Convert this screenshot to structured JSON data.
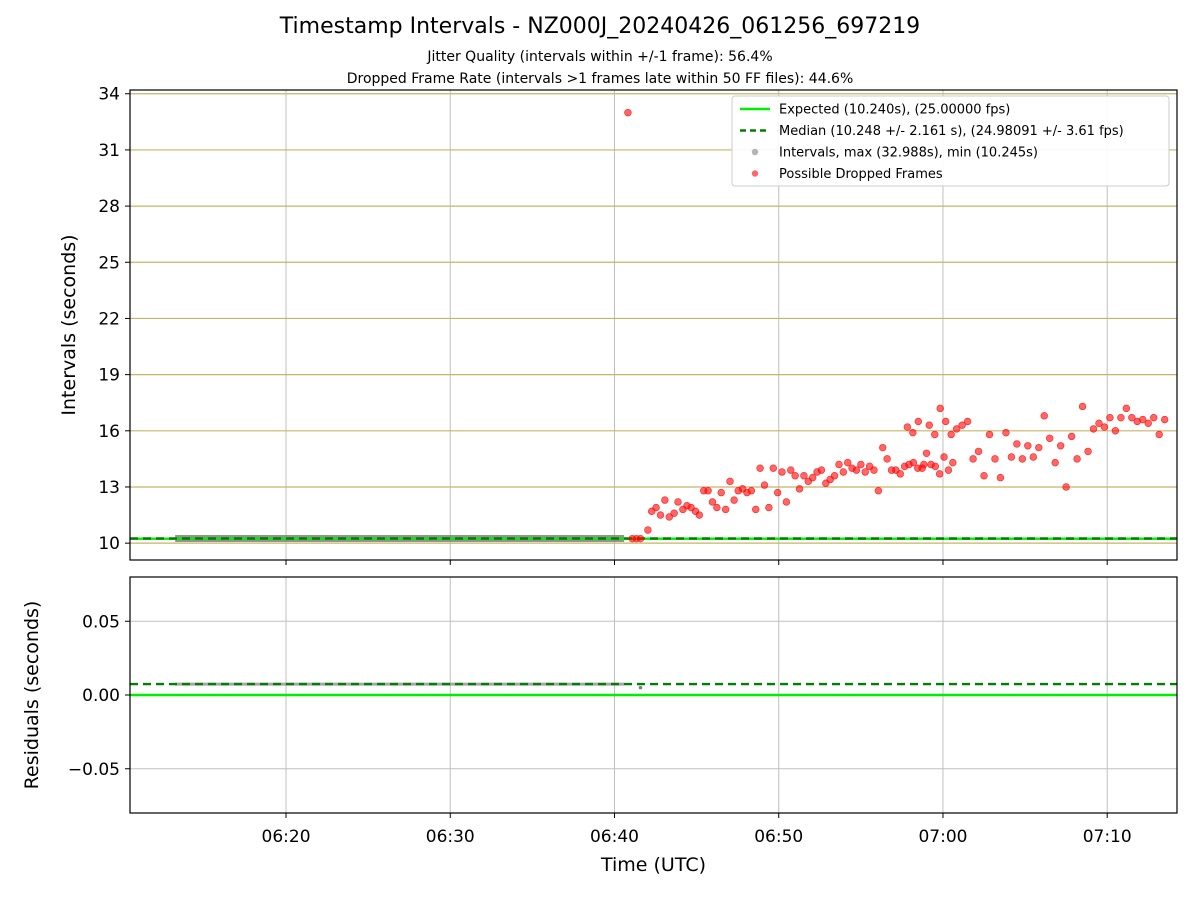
{
  "title": "Timestamp Intervals - NZ000J_20240426_061256_697219",
  "subtitle_lines": [
    "Jitter Quality (intervals within +/-1 frame): 56.4%",
    "Dropped Frame Rate (intervals >1 frames late within 50 FF files): 44.6%"
  ],
  "colors": {
    "expected": "#00ee00",
    "median": "#007f00",
    "intervals": "#808080",
    "dropped": "#ff0000",
    "hgrid_top": "#c8b466",
    "grid": "#c0c0c0"
  },
  "chart_data": [
    {
      "type": "scatter",
      "ylabel": "Intervals (seconds)",
      "xlim": [
        "06:10:30",
        "07:14:15"
      ],
      "ylim": [
        9.1,
        34.2
      ],
      "yticks": [
        10,
        13,
        16,
        19,
        22,
        25,
        28,
        31,
        34
      ],
      "grid": "on",
      "legend_position": "upper-right",
      "reference_lines": [
        {
          "name": "Expected (10.240s), (25.00000 fps)",
          "y": 10.24,
          "style": "solid"
        },
        {
          "name": "Median (10.248 +/- 2.161 s), (24.98091 +/- 3.61 fps)",
          "y": 10.248,
          "style": "dashed"
        }
      ],
      "series": [
        {
          "name": "Intervals, max (32.988s), min (10.245s)",
          "style": "dense-band",
          "x_range": [
            "06:13:15",
            "06:40:35"
          ],
          "y": 10.248
        },
        {
          "name": "Possible Dropped Frames",
          "points": [
            [
              "06:40:49",
              32.988
            ],
            [
              "06:41:05",
              10.24
            ],
            [
              "06:41:20",
              10.24
            ],
            [
              "06:41:35",
              10.24
            ],
            [
              "06:42:02",
              10.7
            ],
            [
              "06:42:16",
              11.7
            ],
            [
              "06:42:32",
              11.9
            ],
            [
              "06:42:48",
              11.5
            ],
            [
              "06:43:04",
              12.3
            ],
            [
              "06:43:20",
              11.4
            ],
            [
              "06:43:38",
              11.6
            ],
            [
              "06:43:52",
              12.2
            ],
            [
              "06:44:10",
              11.8
            ],
            [
              "06:44:25",
              12.0
            ],
            [
              "06:44:40",
              11.9
            ],
            [
              "06:44:56",
              11.7
            ],
            [
              "06:45:10",
              11.5
            ],
            [
              "06:45:26",
              12.8
            ],
            [
              "06:45:42",
              12.8
            ],
            [
              "06:45:58",
              12.2
            ],
            [
              "06:46:14",
              11.9
            ],
            [
              "06:46:30",
              12.7
            ],
            [
              "06:46:46",
              11.8
            ],
            [
              "06:47:02",
              13.3
            ],
            [
              "06:47:17",
              12.3
            ],
            [
              "06:47:32",
              12.8
            ],
            [
              "06:47:48",
              12.9
            ],
            [
              "06:48:04",
              12.7
            ],
            [
              "06:48:20",
              12.8
            ],
            [
              "06:48:36",
              11.8
            ],
            [
              "06:48:52",
              14.0
            ],
            [
              "06:49:08",
              13.1
            ],
            [
              "06:49:24",
              11.9
            ],
            [
              "06:49:40",
              14.0
            ],
            [
              "06:49:56",
              12.7
            ],
            [
              "06:50:12",
              13.8
            ],
            [
              "06:50:28",
              12.2
            ],
            [
              "06:50:44",
              13.9
            ],
            [
              "06:51:00",
              13.6
            ],
            [
              "06:51:16",
              12.9
            ],
            [
              "06:51:32",
              13.6
            ],
            [
              "06:51:48",
              13.3
            ],
            [
              "06:52:04",
              13.5
            ],
            [
              "06:52:20",
              13.8
            ],
            [
              "06:52:36",
              13.9
            ],
            [
              "06:52:52",
              13.2
            ],
            [
              "06:53:08",
              13.4
            ],
            [
              "06:53:24",
              13.6
            ],
            [
              "06:53:40",
              14.2
            ],
            [
              "06:53:56",
              13.8
            ],
            [
              "06:54:12",
              14.3
            ],
            [
              "06:54:28",
              14.0
            ],
            [
              "06:54:44",
              13.9
            ],
            [
              "06:55:00",
              14.2
            ],
            [
              "06:55:16",
              13.8
            ],
            [
              "06:55:32",
              14.1
            ],
            [
              "06:55:48",
              13.9
            ],
            [
              "06:56:04",
              12.8
            ],
            [
              "06:56:20",
              15.1
            ],
            [
              "06:56:36",
              14.5
            ],
            [
              "06:56:52",
              13.9
            ],
            [
              "06:57:08",
              13.9
            ],
            [
              "06:57:24",
              13.7
            ],
            [
              "06:57:40",
              14.1
            ],
            [
              "06:57:56",
              14.2
            ],
            [
              "06:58:12",
              14.3
            ],
            [
              "06:58:28",
              14.0
            ],
            [
              "06:58:44",
              14.0
            ],
            [
              "06:59:00",
              14.8
            ],
            [
              "06:59:16",
              14.2
            ],
            [
              "06:59:32",
              14.1
            ],
            [
              "06:59:48",
              13.7
            ],
            [
              "07:00:04",
              14.6
            ],
            [
              "07:00:20",
              13.9
            ],
            [
              "07:00:36",
              14.3
            ],
            [
              "06:57:50",
              16.2
            ],
            [
              "06:58:10",
              15.9
            ],
            [
              "06:58:30",
              16.5
            ],
            [
              "06:58:50",
              14.2
            ],
            [
              "06:59:10",
              16.3
            ],
            [
              "06:59:30",
              15.8
            ],
            [
              "06:59:50",
              17.2
            ],
            [
              "07:00:10",
              16.5
            ],
            [
              "07:00:30",
              15.8
            ],
            [
              "07:00:50",
              16.1
            ],
            [
              "07:01:10",
              16.3
            ],
            [
              "07:01:30",
              16.5
            ],
            [
              "07:01:50",
              14.5
            ],
            [
              "07:02:10",
              14.9
            ],
            [
              "07:02:30",
              13.6
            ],
            [
              "07:02:50",
              15.8
            ],
            [
              "07:03:10",
              14.5
            ],
            [
              "07:03:30",
              13.5
            ],
            [
              "07:03:50",
              15.9
            ],
            [
              "07:04:10",
              14.6
            ],
            [
              "07:04:30",
              15.3
            ],
            [
              "07:04:50",
              14.5
            ],
            [
              "07:05:10",
              15.2
            ],
            [
              "07:05:30",
              14.6
            ],
            [
              "07:05:50",
              15.1
            ],
            [
              "07:06:10",
              16.8
            ],
            [
              "07:06:30",
              15.6
            ],
            [
              "07:06:50",
              14.3
            ],
            [
              "07:07:10",
              15.2
            ],
            [
              "07:07:30",
              13.0
            ],
            [
              "07:07:50",
              15.7
            ],
            [
              "07:08:10",
              14.5
            ],
            [
              "07:08:30",
              17.3
            ],
            [
              "07:08:50",
              14.9
            ],
            [
              "07:09:10",
              16.1
            ],
            [
              "07:09:30",
              16.4
            ],
            [
              "07:09:50",
              16.2
            ],
            [
              "07:10:10",
              16.7
            ],
            [
              "07:10:30",
              16.0
            ],
            [
              "07:10:50",
              16.7
            ],
            [
              "07:11:10",
              17.2
            ],
            [
              "07:11:30",
              16.7
            ],
            [
              "07:11:50",
              16.5
            ],
            [
              "07:12:10",
              16.6
            ],
            [
              "07:12:30",
              16.4
            ],
            [
              "07:12:50",
              16.7
            ],
            [
              "07:13:10",
              15.8
            ],
            [
              "07:13:30",
              16.6
            ]
          ]
        }
      ]
    },
    {
      "type": "scatter",
      "xlabel": "Time (UTC)",
      "ylabel": "Residuals (seconds)",
      "xlim": [
        "06:10:30",
        "07:14:15"
      ],
      "ylim": [
        -0.08,
        0.08
      ],
      "yticks": [
        0.05,
        0.0,
        -0.05
      ],
      "ytick_labels": [
        "0.05",
        "0.00",
        "−0.05"
      ],
      "xticks": [
        "06:20",
        "06:30",
        "06:40",
        "06:50",
        "07:00",
        "07:10"
      ],
      "grid": "on",
      "reference_lines": [
        {
          "y": 0.0,
          "style": "solid",
          "role": "expected"
        },
        {
          "y": 0.0074,
          "style": "dashed",
          "role": "median"
        }
      ],
      "series": [
        {
          "style": "dense-band",
          "x_range": [
            "06:13:15",
            "06:40:35"
          ],
          "y": 0.0074
        },
        {
          "style": "points",
          "points": [
            [
              "06:41:35",
              0.005
            ]
          ]
        }
      ]
    }
  ]
}
